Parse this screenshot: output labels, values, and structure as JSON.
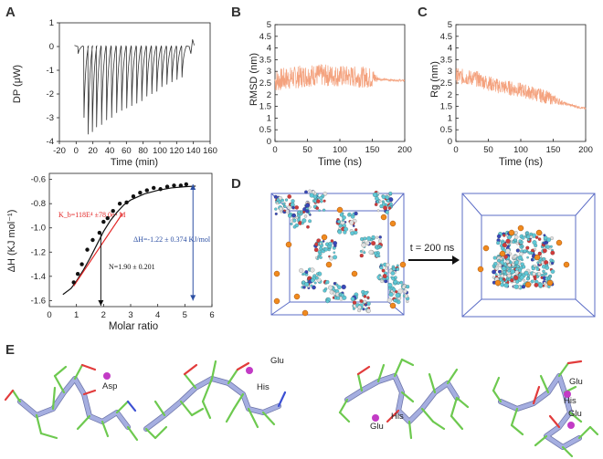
{
  "panels": {
    "A": "A",
    "B": "B",
    "C": "C",
    "D": "D",
    "E": "E"
  },
  "panelD": {
    "arrow_label": "t = 200 ns"
  },
  "panelE": {
    "res1": "Asp",
    "res2a": "Glu",
    "res2b": "His",
    "res3a": "His",
    "res3b": "Glu",
    "res4a": "Glu",
    "res4b": "His",
    "res4c": "Glu"
  },
  "colors": {
    "trace": "#f4a27e",
    "fit_red": "#e32626",
    "blue_arrow": "#2c4fa3",
    "box": "#5b6cc6",
    "ion": "#f08a1e",
    "ribbon": "#a5aee0",
    "stick_green": "#6dc94f"
  },
  "chart_data": [
    {
      "id": "A-top",
      "type": "line",
      "ylabel": "DP (μW)",
      "xlabel": "Time (min)",
      "xticks": [
        -20,
        0,
        20,
        40,
        60,
        80,
        100,
        120,
        140,
        160
      ],
      "yticks": [
        1,
        0,
        -1,
        -2,
        -3,
        -4
      ],
      "xlim": [
        -20,
        160
      ],
      "ylim": [
        -4,
        1
      ],
      "injection_times": [
        2,
        9,
        14,
        19,
        24,
        30,
        36,
        42,
        48,
        54,
        60,
        66,
        72,
        78,
        84,
        90,
        96,
        102,
        108,
        114,
        120,
        126
      ],
      "peak_values": [
        -0.3,
        -3.0,
        -3.7,
        -3.6,
        -3.4,
        -3.3,
        -3.1,
        -3.0,
        -2.8,
        -2.7,
        -2.6,
        -2.5,
        -2.4,
        -2.3,
        -2.1,
        -2.0,
        -1.9,
        -1.7,
        -1.6,
        -1.5,
        -1.4,
        -1.3
      ]
    },
    {
      "id": "A-bottom",
      "type": "scatter",
      "ylabel": "ΔH (KJ mol⁻¹)",
      "xlabel": "Molar ratio",
      "xticks": [
        0,
        1,
        2,
        3,
        4,
        5,
        6
      ],
      "yticks": [
        -0.6,
        -0.8,
        -1.0,
        -1.2,
        -1.4,
        -1.6
      ],
      "xlim": [
        0,
        6
      ],
      "ylim": [
        -1.65,
        -0.55
      ],
      "points_x": [
        0.9,
        1.05,
        1.2,
        1.4,
        1.6,
        1.85,
        2.0,
        2.15,
        2.35,
        2.6,
        2.85,
        3.1,
        3.35,
        3.6,
        3.85,
        4.1,
        4.35,
        4.6,
        4.85,
        5.05
      ],
      "points_y": [
        -1.45,
        -1.38,
        -1.3,
        -1.18,
        -1.1,
        -1.04,
        -0.95,
        -0.92,
        -0.86,
        -0.8,
        -0.79,
        -0.74,
        -0.71,
        -0.69,
        -0.67,
        -0.68,
        -0.66,
        -0.65,
        -0.65,
        -0.64
      ],
      "fit_x": [
        0.5,
        0.8,
        1.0,
        1.25,
        1.5,
        1.75,
        2.0,
        2.25,
        2.5,
        2.75,
        3.0,
        3.5,
        4.0,
        4.5,
        5.0,
        5.4
      ],
      "fit_y": [
        -1.55,
        -1.5,
        -1.44,
        -1.35,
        -1.25,
        -1.14,
        -1.03,
        -0.94,
        -0.87,
        -0.81,
        -0.77,
        -0.72,
        -0.69,
        -0.67,
        -0.66,
        -0.655
      ],
      "annot_kb": "K_b=118E⁴ ±78.0e⁴ M",
      "annot_dh": "ΔH=-1.22 ± 0.374 KJ/mol",
      "annot_n": "N=1.90 ± 0.201",
      "n_value": 1.9
    },
    {
      "id": "B",
      "type": "line",
      "ylabel": "RMSD (nm)",
      "xlabel": "Time (ns)",
      "xticks": [
        0,
        50,
        100,
        150,
        200
      ],
      "yticks": [
        0,
        0.5,
        1,
        1.5,
        2,
        2.5,
        3,
        3.5,
        4,
        4.5,
        5
      ],
      "xlim": [
        0,
        200
      ],
      "ylim": [
        0,
        5
      ],
      "baseline": [
        [
          0,
          2.6
        ],
        [
          20,
          2.7
        ],
        [
          60,
          2.85
        ],
        [
          100,
          2.8
        ],
        [
          140,
          2.75
        ],
        [
          155,
          2.7
        ],
        [
          165,
          2.65
        ],
        [
          200,
          2.6
        ]
      ],
      "noise": [
        [
          0,
          0.5
        ],
        [
          150,
          0.45
        ],
        [
          160,
          0.05
        ],
        [
          200,
          0.04
        ]
      ]
    },
    {
      "id": "C",
      "type": "line",
      "ylabel": "Rg (nm)",
      "xlabel": "Time (ns)",
      "xticks": [
        0,
        50,
        100,
        150,
        200
      ],
      "yticks": [
        0,
        0.5,
        1,
        1.5,
        2,
        2.5,
        3,
        3.5,
        4,
        4.5,
        5
      ],
      "xlim": [
        0,
        200
      ],
      "ylim": [
        0,
        5
      ],
      "baseline": [
        [
          0,
          2.8
        ],
        [
          30,
          2.7
        ],
        [
          60,
          2.4
        ],
        [
          100,
          2.2
        ],
        [
          140,
          1.9
        ],
        [
          170,
          1.6
        ],
        [
          200,
          1.4
        ]
      ],
      "noise": [
        [
          0,
          0.35
        ],
        [
          140,
          0.3
        ],
        [
          170,
          0.06
        ],
        [
          200,
          0.05
        ]
      ]
    }
  ]
}
